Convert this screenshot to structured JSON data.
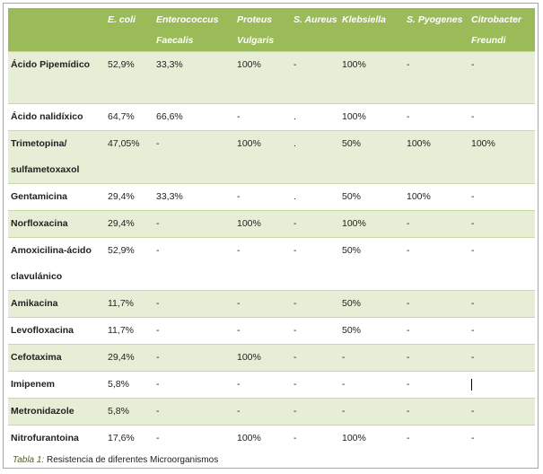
{
  "headers": [
    "",
    "E. coli",
    "Enterococcus Faecalis",
    "Proteus Vulgaris",
    "S. Aureus",
    "Klebsiella",
    "S. Pyogenes",
    "Citrobacter Freundi"
  ],
  "rows": [
    {
      "name": "Ácido Pipemídico",
      "cells": [
        "52,9%",
        "33,3%",
        "100%",
        "-",
        "100%",
        "-",
        "-"
      ]
    },
    {
      "name": "Ácido nalidíxico",
      "cells": [
        "64,7%",
        "66,6%",
        "-",
        ".",
        "100%",
        "-",
        "-"
      ]
    },
    {
      "name": "Trimetopina/ sulfametoxaxol",
      "cells": [
        "47,05%",
        "-",
        "100%",
        ".",
        "50%",
        "100%",
        "100%"
      ]
    },
    {
      "name": "Gentamicina",
      "cells": [
        "29,4%",
        "33,3%",
        "-",
        ".",
        "50%",
        "100%",
        "-"
      ]
    },
    {
      "name": "Norfloxacina",
      "cells": [
        "29,4%",
        "-",
        "100%",
        "-",
        "100%",
        "-",
        "-"
      ]
    },
    {
      "name": "Amoxicilina-ácido clavulánico",
      "cells": [
        "52,9%",
        "-",
        "-",
        "-",
        "50%",
        "-",
        "-"
      ]
    },
    {
      "name": "Amikacina",
      "cells": [
        "11,7%",
        "-",
        "-",
        "-",
        "50%",
        "-",
        "-"
      ]
    },
    {
      "name": "Levofloxacina",
      "cells": [
        "11,7%",
        "-",
        "-",
        "-",
        "50%",
        "-",
        "-"
      ]
    },
    {
      "name": "Cefotaxima",
      "cells": [
        "29,4%",
        "-",
        "100%",
        "-",
        "-",
        "-",
        "-"
      ]
    },
    {
      "name": "Imipenem",
      "cells": [
        "5,8%",
        "-",
        "-",
        "-",
        "-",
        "-",
        ""
      ]
    },
    {
      "name": "Metronidazole",
      "cells": [
        "5,8%",
        "-",
        "-",
        "-",
        "-",
        "-",
        "-"
      ]
    },
    {
      "name": "Nitrofurantoina",
      "cells": [
        "17,6%",
        "-",
        "100%",
        "-",
        "100%",
        "-",
        "-"
      ]
    }
  ],
  "caption": {
    "label": "Tabla 1:",
    "text": " Resistencia de diferentes Microorganismos"
  },
  "colors": {
    "header_bg": "#9bbb59",
    "band_bg": "#e6eed5",
    "border": "#9bbb59"
  }
}
